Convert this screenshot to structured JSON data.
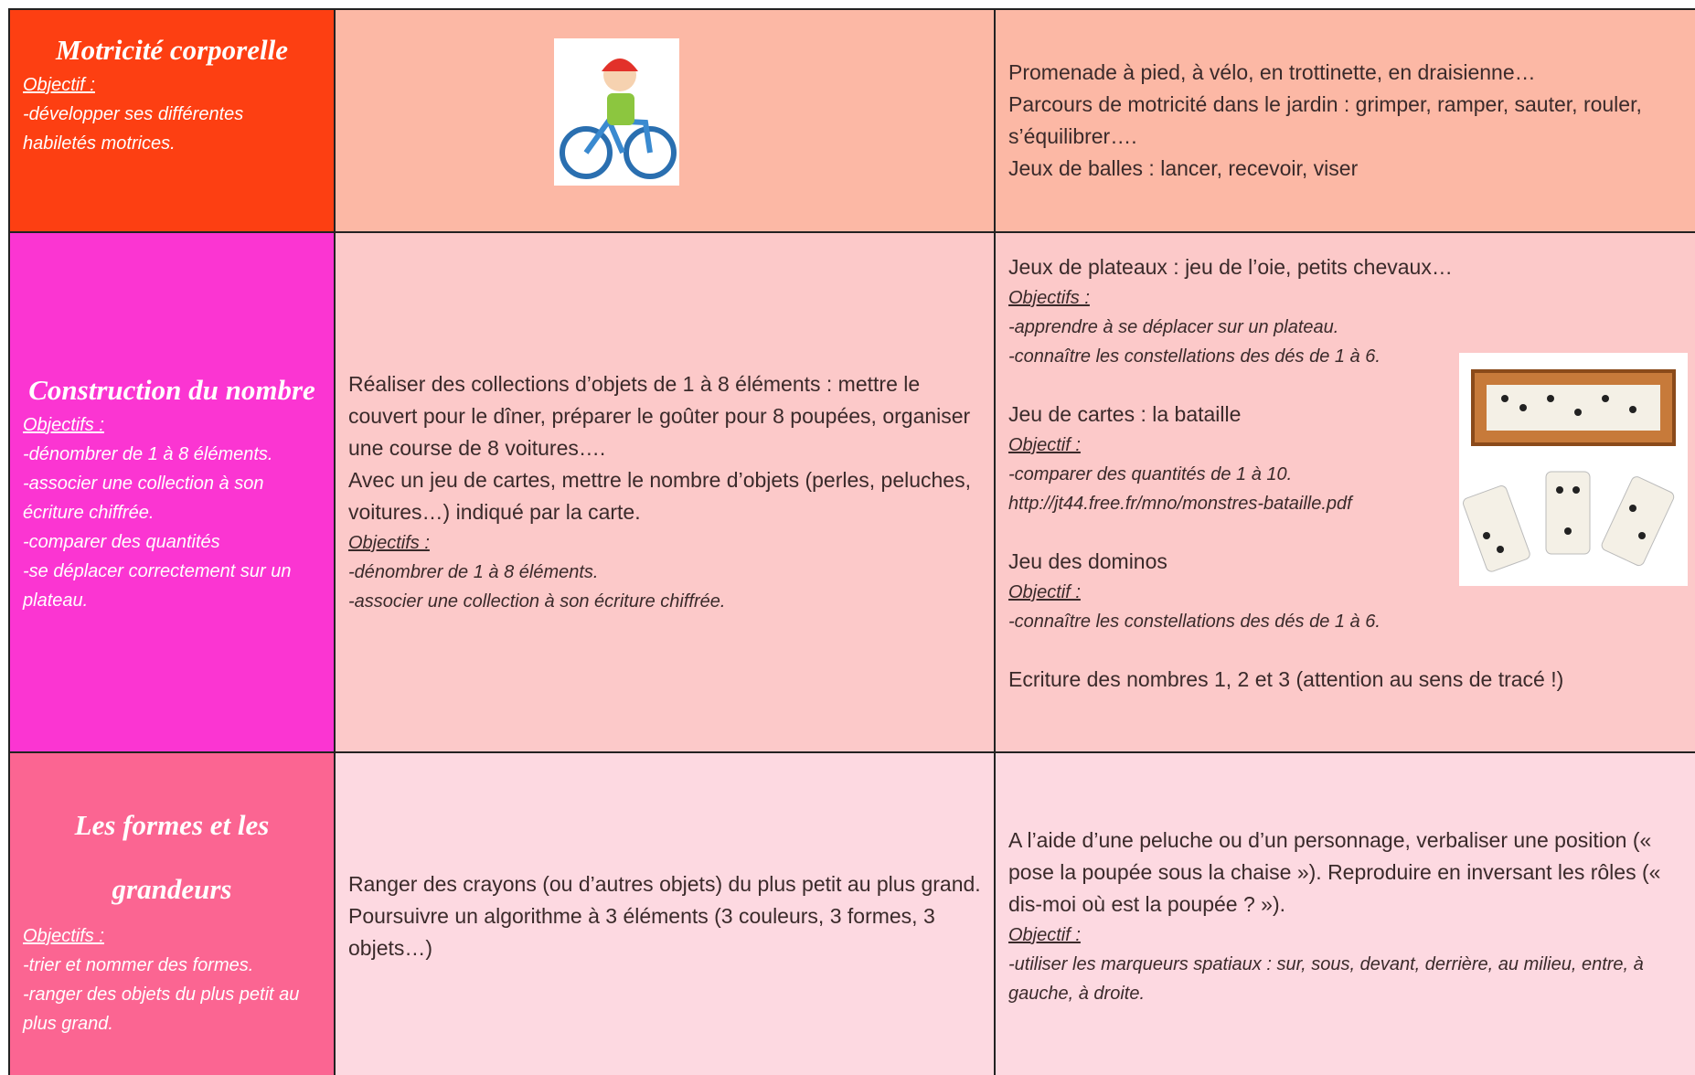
{
  "rows": [
    {
      "title": "Motricité corporelle",
      "objective_label": "Objectif :",
      "objectives": [
        "-développer ses différentes habiletés motrices."
      ],
      "right": {
        "lines": [
          "Promenade à pied, à vélo, en trottinette, en draisienne…",
          "Parcours de motricité dans le jardin : grimper, ramper, sauter, rouler, s’équilibrer….",
          "Jeux de balles : lancer, recevoir, viser"
        ]
      }
    },
    {
      "title": "Construction du nombre",
      "objective_label": "Objectifs :",
      "objectives": [
        "-dénombrer de 1 à 8 éléments.",
        "-associer une collection à son écriture chiffrée.",
        "-comparer des quantités",
        "-se déplacer correctement sur un plateau."
      ],
      "middle": {
        "lines": [
          "Réaliser des collections d’objets de 1 à 8 éléments : mettre le couvert pour le dîner, préparer le goûter pour 8 poupées, organiser une course de 8 voitures….",
          "Avec un jeu de cartes, mettre le nombre d’objets (perles, peluches, voitures…) indiqué par la carte."
        ],
        "objective_label": "Objectifs :",
        "objectives": [
          "-dénombrer de 1 à 8 éléments.",
          "-associer une collection à son écriture chiffrée."
        ]
      },
      "right": {
        "groups": [
          {
            "heading": "Jeux de plateaux : jeu de l’oie, petits chevaux…",
            "objective_label": "Objectifs :",
            "objectives": [
              "-apprendre à se déplacer sur un plateau.",
              "-connaître les constellations des dés de 1 à 6."
            ]
          },
          {
            "heading": "Jeu de cartes : la bataille",
            "objective_label": "Objectif :",
            "objectives": [
              "-comparer des quantités de 1 à 10.",
              "http://jt44.free.fr/mno/monstres-bataille.pdf"
            ]
          },
          {
            "heading": "Jeu des dominos",
            "objective_label": "Objectif :",
            "objectives": [
              "-connaître les constellations des dés de 1 à 6."
            ]
          },
          {
            "heading": "Ecriture des nombres 1, 2 et 3 (attention au sens de tracé !)"
          }
        ]
      }
    },
    {
      "title": "Les formes et les grandeurs",
      "objective_label": "Objectifs :",
      "objectives": [
        "-trier et nommer des formes.",
        "-ranger des objets du plus petit au plus grand."
      ],
      "middle": {
        "lines": [
          "Ranger des crayons (ou d’autres objets) du plus petit au plus grand.",
          "Poursuivre un algorithme à 3 éléments (3 couleurs, 3 formes, 3 objets…)"
        ]
      },
      "right": {
        "lines": [
          "A l’aide d’une peluche ou d’un personnage, verbaliser une position (« pose la poupée sous la chaise »). Reproduire en inversant les rôles (« dis-moi où est la poupée ? »)."
        ],
        "objective_label": "Objectif :",
        "objectives": [
          "-utiliser les marqueurs spatiaux : sur, sous, devant, derrière, au milieu, entre, à gauche, à droite."
        ]
      }
    }
  ]
}
